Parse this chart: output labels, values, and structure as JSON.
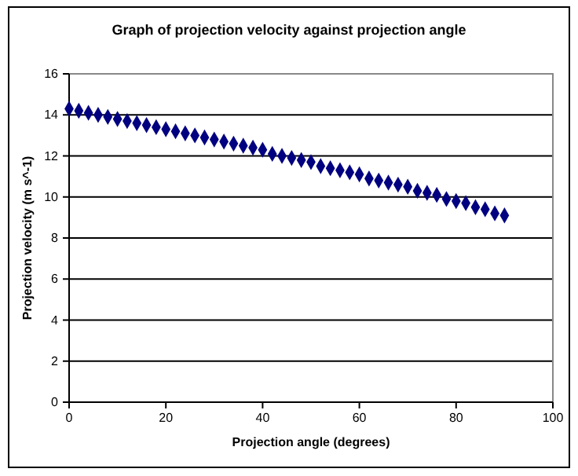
{
  "chart_data": {
    "type": "scatter",
    "title": "Graph of projection velocity against projection angle",
    "xlabel": "Projection angle (degrees)",
    "ylabel": "Projection velocity (m s^-1)",
    "x": [
      0,
      2,
      4,
      6,
      8,
      10,
      12,
      14,
      16,
      18,
      20,
      22,
      24,
      26,
      28,
      30,
      32,
      34,
      36,
      38,
      40,
      42,
      44,
      46,
      48,
      50,
      52,
      54,
      56,
      58,
      60,
      62,
      64,
      66,
      68,
      70,
      72,
      74,
      76,
      78,
      80,
      82,
      84,
      86,
      88,
      90
    ],
    "series": [
      {
        "color": "#000080",
        "values": [
          14.3,
          14.2,
          14.1,
          14.0,
          13.9,
          13.8,
          13.7,
          13.6,
          13.5,
          13.4,
          13.3,
          13.2,
          13.1,
          13.0,
          12.9,
          12.8,
          12.7,
          12.6,
          12.5,
          12.4,
          12.3,
          12.1,
          12.0,
          11.9,
          11.8,
          11.7,
          11.5,
          11.4,
          11.3,
          11.2,
          11.1,
          10.9,
          10.8,
          10.7,
          10.6,
          10.5,
          10.3,
          10.2,
          10.1,
          9.9,
          9.8,
          9.7,
          9.5,
          9.4,
          9.2,
          9.1
        ]
      }
    ],
    "xlim": [
      0,
      100
    ],
    "xticks": [
      0,
      20,
      40,
      60,
      80,
      100
    ],
    "ylim": [
      0,
      16
    ],
    "yticks": [
      0,
      2,
      4,
      6,
      8,
      10,
      12,
      14,
      16
    ],
    "grid": "y",
    "marker": "diamond"
  }
}
